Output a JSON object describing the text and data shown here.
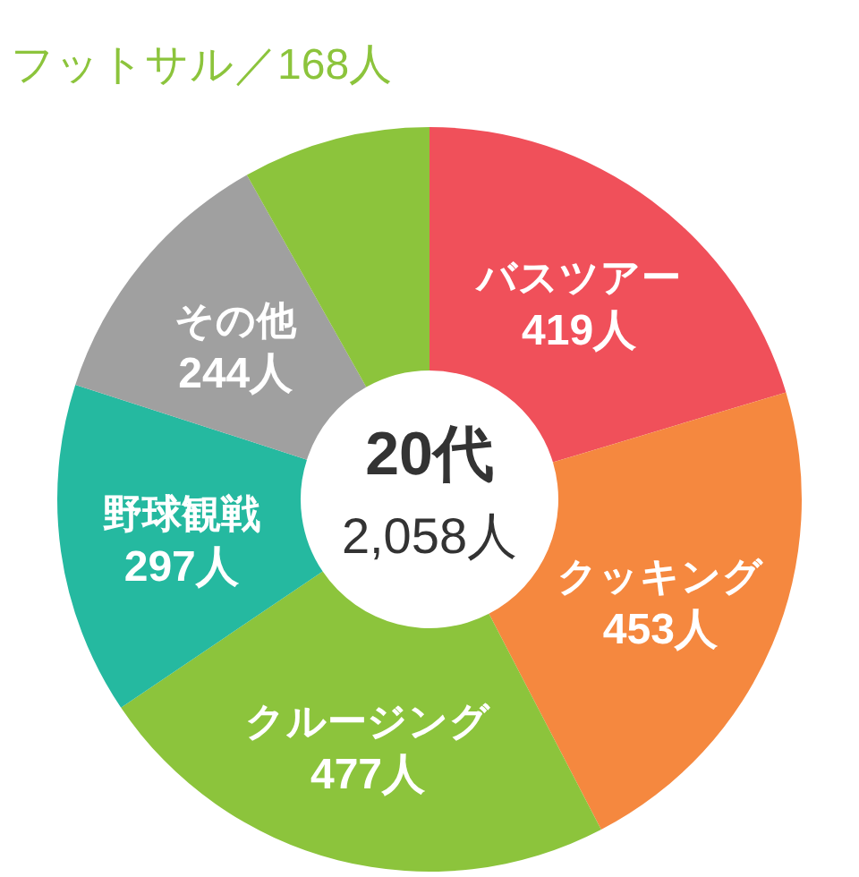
{
  "chart_data": {
    "type": "donut",
    "title": "20代",
    "annotations": [
      "2,058人"
    ],
    "categories": [
      "バスツアー",
      "クッキング",
      "クルージング",
      "野球観戦",
      "その他",
      "フットサル"
    ],
    "values": [
      419,
      453,
      477,
      297,
      244,
      168
    ],
    "colors": [
      "#f0505a",
      "#f5883f",
      "#8cc43c",
      "#25b9a0",
      "#a0a0a0",
      "#8cc43c"
    ],
    "value_labels": [
      "419人",
      "453人",
      "477人",
      "297人",
      "244人",
      "／168人"
    ]
  }
}
